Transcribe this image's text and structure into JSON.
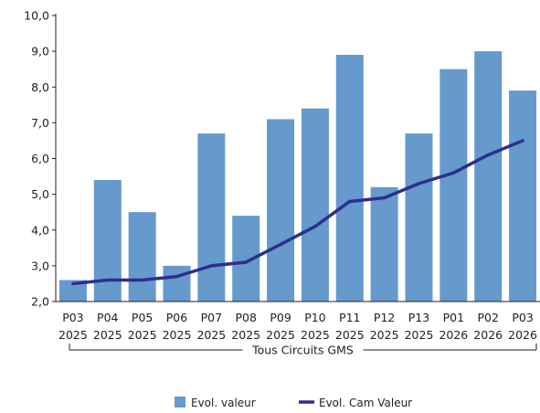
{
  "chart_data": {
    "type": "bar",
    "categories": [
      [
        "P03",
        "2025"
      ],
      [
        "P04",
        "2025"
      ],
      [
        "P05",
        "2025"
      ],
      [
        "P06",
        "2025"
      ],
      [
        "P07",
        "2025"
      ],
      [
        "P08",
        "2025"
      ],
      [
        "P09",
        "2025"
      ],
      [
        "P10",
        "2025"
      ],
      [
        "P11",
        "2025"
      ],
      [
        "P12",
        "2025"
      ],
      [
        "P13",
        "2025"
      ],
      [
        "P01",
        "2026"
      ],
      [
        "P02",
        "2026"
      ],
      [
        "P03",
        "2026"
      ]
    ],
    "group_label": "Tous Circuits GMS",
    "series": [
      {
        "name": "Evol.  valeur",
        "type": "bar",
        "color": "#6699cc",
        "values": [
          2.6,
          5.4,
          4.5,
          3.0,
          6.7,
          4.4,
          7.1,
          7.4,
          8.9,
          5.2,
          6.7,
          8.5,
          9.0,
          7.9
        ]
      },
      {
        "name": "Evol. Cam Valeur",
        "type": "line",
        "color": "#2e2e8f",
        "values": [
          2.5,
          2.6,
          2.6,
          2.7,
          3.0,
          3.1,
          3.6,
          4.1,
          4.8,
          4.9,
          5.3,
          5.6,
          6.1,
          6.5
        ]
      }
    ],
    "yticks": [
      "2,0",
      "3,0",
      "4,0",
      "5,0",
      "6,0",
      "7,0",
      "8,0",
      "9,0",
      "10,0"
    ],
    "ylim": [
      2,
      10
    ],
    "grid": false,
    "legend_position": "bottom"
  }
}
